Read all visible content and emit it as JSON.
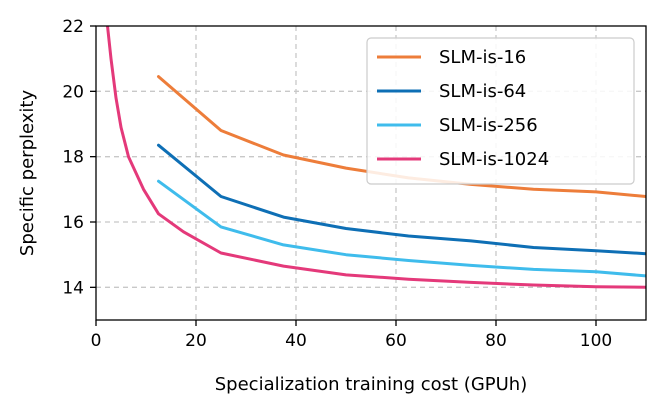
{
  "chart_data": {
    "type": "line",
    "title": "",
    "xlabel": "Specialization training cost (GPUh)",
    "ylabel": "Specific perplexity",
    "xlim": [
      0,
      110
    ],
    "ylim": [
      13,
      22
    ],
    "xticks": [
      0,
      20,
      40,
      60,
      80,
      100
    ],
    "yticks": [
      14,
      16,
      18,
      20,
      22
    ],
    "grid": true,
    "legend_position": "top-right",
    "series": [
      {
        "name": "SLM-is-16",
        "color": "#ED7D3A",
        "x": [
          12.5,
          25,
          37.5,
          50,
          62.5,
          75,
          87.5,
          100,
          110
        ],
        "y": [
          20.45,
          18.8,
          18.05,
          17.65,
          17.35,
          17.15,
          17.0,
          16.92,
          16.78
        ]
      },
      {
        "name": "SLM-is-64",
        "color": "#0E6FB5",
        "x": [
          12.5,
          25,
          37.5,
          50,
          62.5,
          75,
          87.5,
          100,
          110
        ],
        "y": [
          18.35,
          16.78,
          16.15,
          15.8,
          15.57,
          15.42,
          15.22,
          15.12,
          15.03
        ]
      },
      {
        "name": "SLM-is-256",
        "color": "#3FBCEC",
        "x": [
          12.5,
          25,
          37.5,
          50,
          62.5,
          75,
          87.5,
          100,
          110
        ],
        "y": [
          17.25,
          15.85,
          15.3,
          15.0,
          14.82,
          14.67,
          14.55,
          14.48,
          14.35
        ]
      },
      {
        "name": "SLM-is-1024",
        "color": "#E4397A",
        "x": [
          2.3,
          3.0,
          4.0,
          5.0,
          6.5,
          8.0,
          9.5,
          12.5,
          17.5,
          25,
          37.5,
          50,
          62.5,
          75,
          87.5,
          100,
          110
        ],
        "y": [
          22.0,
          21.0,
          19.8,
          18.9,
          18.0,
          17.5,
          17.0,
          16.25,
          15.7,
          15.05,
          14.65,
          14.38,
          14.25,
          14.15,
          14.07,
          14.02,
          14.0
        ]
      }
    ]
  }
}
